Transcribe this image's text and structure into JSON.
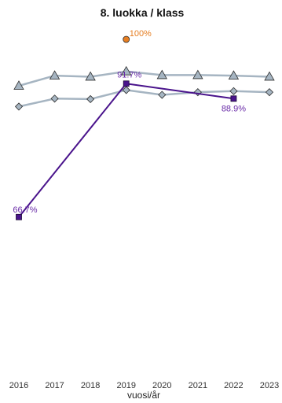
{
  "chart_data": {
    "type": "line",
    "title": "8. luokka / klass",
    "xlabel": "vuosi/år",
    "ylabel": "",
    "x": [
      2016,
      2017,
      2018,
      2019,
      2020,
      2021,
      2022,
      2023
    ],
    "xlim": [
      2016,
      2023
    ],
    "ylim": [
      50,
      100
    ],
    "grid": false,
    "series": [
      {
        "marker": "triangle",
        "color": "#a6b5c2",
        "values": [
          {
            "x": 2016,
            "y": 91.3
          },
          {
            "x": 2017,
            "y": 93.2
          },
          {
            "x": 2018,
            "y": 93.0
          },
          {
            "x": 2019,
            "y": 94.0
          },
          {
            "x": 2020,
            "y": 93.3
          },
          {
            "x": 2021,
            "y": 93.3
          },
          {
            "x": 2022,
            "y": 93.2
          },
          {
            "x": 2023,
            "y": 93.0
          }
        ]
      },
      {
        "marker": "diamond",
        "color": "#a6b5c2",
        "values": [
          {
            "x": 2016,
            "y": 87.4
          },
          {
            "x": 2017,
            "y": 88.9
          },
          {
            "x": 2018,
            "y": 88.8
          },
          {
            "x": 2019,
            "y": 90.5
          },
          {
            "x": 2020,
            "y": 89.6
          },
          {
            "x": 2021,
            "y": 90.1
          },
          {
            "x": 2022,
            "y": 90.3
          },
          {
            "x": 2023,
            "y": 90.1
          }
        ]
      },
      {
        "marker": "square",
        "color": "#4a148c",
        "label_color": "#6a2ca8",
        "values": [
          {
            "x": 2016,
            "y": 66.7,
            "label": "66.7%"
          },
          {
            "x": 2019,
            "y": 91.7,
            "label": "91.7%"
          },
          {
            "x": 2022,
            "y": 88.9,
            "label": "88.9%"
          }
        ]
      },
      {
        "marker": "circle",
        "color": "#e67e22",
        "label_color": "#e67e22",
        "values": [
          {
            "x": 2019,
            "y": 100,
            "label": "100%"
          }
        ]
      }
    ]
  }
}
